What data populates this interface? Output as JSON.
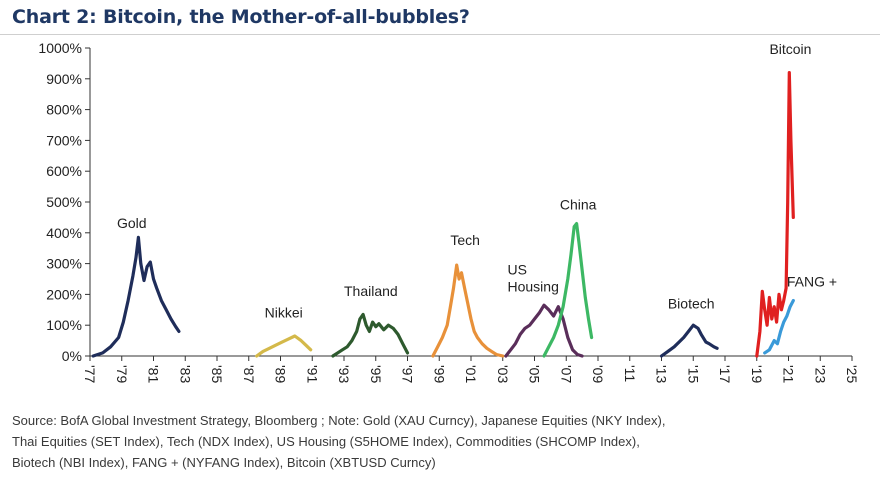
{
  "title": "Chart 2: Bitcoin, the Mother-of-all-bubbles?",
  "source_lines": [
    "Source: BofA Global Investment Strategy, Bloomberg ; Note: Gold (XAU Curncy), Japanese Equities (NKY Index),",
    "Thai Equities (SET Index), Tech (NDX Index), US Housing (S5HOME Index), Commodities (SHCOMP Index),",
    "Biotech (NBI Index), FANG + (NYFANG Index), Bitcoin (XBTUSD Curncy)"
  ],
  "chart_data": {
    "type": "line",
    "title": "Chart 2: Bitcoin, the Mother-of-all-bubbles?",
    "xlabel": "",
    "ylabel": "",
    "xlim": [
      1977,
      2025
    ],
    "ylim": [
      0,
      1000
    ],
    "grid": false,
    "y_ticks": [
      {
        "value": 0,
        "label": "0%"
      },
      {
        "value": 100,
        "label": "100%"
      },
      {
        "value": 200,
        "label": "200%"
      },
      {
        "value": 300,
        "label": "300%"
      },
      {
        "value": 400,
        "label": "400%"
      },
      {
        "value": 500,
        "label": "500%"
      },
      {
        "value": 600,
        "label": "600%"
      },
      {
        "value": 700,
        "label": "700%"
      },
      {
        "value": 800,
        "label": "800%"
      },
      {
        "value": 900,
        "label": "900%"
      },
      {
        "value": 1000,
        "label": "1000%"
      }
    ],
    "x_ticks": [
      {
        "value": 1977,
        "label": "'77"
      },
      {
        "value": 1979,
        "label": "'79"
      },
      {
        "value": 1981,
        "label": "'81"
      },
      {
        "value": 1983,
        "label": "'83"
      },
      {
        "value": 1985,
        "label": "'85"
      },
      {
        "value": 1987,
        "label": "'87"
      },
      {
        "value": 1989,
        "label": "'89"
      },
      {
        "value": 1991,
        "label": "'91"
      },
      {
        "value": 1993,
        "label": "'93"
      },
      {
        "value": 1995,
        "label": "'95"
      },
      {
        "value": 1997,
        "label": "'97"
      },
      {
        "value": 1999,
        "label": "'99"
      },
      {
        "value": 2001,
        "label": "'01"
      },
      {
        "value": 2003,
        "label": "'03"
      },
      {
        "value": 2005,
        "label": "'05"
      },
      {
        "value": 2007,
        "label": "'07"
      },
      {
        "value": 2009,
        "label": "'09"
      },
      {
        "value": 2011,
        "label": "'11"
      },
      {
        "value": 2013,
        "label": "'13"
      },
      {
        "value": 2015,
        "label": "'15"
      },
      {
        "value": 2017,
        "label": "'17"
      },
      {
        "value": 2019,
        "label": "'19"
      },
      {
        "value": 2021,
        "label": "'21"
      },
      {
        "value": 2023,
        "label": "'23"
      },
      {
        "value": 2025,
        "label": "'25"
      }
    ],
    "series": [
      {
        "name": "Gold",
        "color": "#1f2d5a",
        "label": {
          "text": "Gold",
          "x": 1978.7,
          "y": 415
        },
        "x": [
          1977.2,
          1977.8,
          1978.3,
          1978.8,
          1979.1,
          1979.4,
          1979.7,
          1979.9,
          1980.05,
          1980.2,
          1980.4,
          1980.6,
          1980.8,
          1981.0,
          1981.2,
          1981.5,
          1981.8,
          1982.1,
          1982.4,
          1982.6
        ],
        "y": [
          0,
          10,
          30,
          60,
          110,
          180,
          260,
          320,
          385,
          300,
          245,
          290,
          305,
          250,
          220,
          180,
          150,
          120,
          95,
          80
        ]
      },
      {
        "name": "Nikkei",
        "color": "#d4b94a",
        "label": {
          "text": "Nikkei",
          "x": 1988.0,
          "y": 125
        },
        "x": [
          1987.5,
          1987.9,
          1988.3,
          1988.7,
          1989.1,
          1989.5,
          1989.9,
          1990.3,
          1990.6,
          1990.9
        ],
        "y": [
          0,
          15,
          25,
          35,
          45,
          55,
          65,
          50,
          35,
          20
        ]
      },
      {
        "name": "Thailand",
        "color": "#2e5a2e",
        "label": {
          "text": "Thailand",
          "x": 1993.0,
          "y": 195
        },
        "x": [
          1992.3,
          1992.6,
          1992.9,
          1993.2,
          1993.5,
          1993.8,
          1994.0,
          1994.2,
          1994.4,
          1994.6,
          1994.8,
          1995.0,
          1995.2,
          1995.5,
          1995.8,
          1996.1,
          1996.4,
          1996.7,
          1997.0
        ],
        "y": [
          0,
          10,
          20,
          30,
          50,
          80,
          120,
          135,
          100,
          80,
          110,
          95,
          105,
          85,
          100,
          90,
          70,
          40,
          10
        ]
      },
      {
        "name": "Tech",
        "color": "#e8913a",
        "label": {
          "text": "Tech",
          "x": 1999.7,
          "y": 360
        },
        "x": [
          1998.6,
          1998.9,
          1999.2,
          1999.5,
          1999.7,
          1999.9,
          2000.1,
          2000.25,
          2000.4,
          2000.6,
          2000.8,
          2001.0,
          2001.2,
          2001.4,
          2001.7,
          2002.0,
          2002.3,
          2002.6,
          2003.0
        ],
        "y": [
          0,
          30,
          60,
          100,
          160,
          220,
          295,
          250,
          270,
          220,
          170,
          120,
          80,
          60,
          40,
          25,
          15,
          5,
          0
        ]
      },
      {
        "name": "US Housing",
        "color": "#5a2e5a",
        "label": {
          "text": "US\nHousing",
          "x": 2003.3,
          "y": 265
        },
        "x": [
          2003.2,
          2003.5,
          2003.8,
          2004.1,
          2004.4,
          2004.7,
          2005.0,
          2005.3,
          2005.6,
          2005.9,
          2006.2,
          2006.5,
          2006.8,
          2007.1,
          2007.4,
          2007.7,
          2008.0
        ],
        "y": [
          0,
          20,
          40,
          70,
          90,
          100,
          120,
          140,
          165,
          150,
          130,
          160,
          120,
          60,
          20,
          5,
          0
        ]
      },
      {
        "name": "China",
        "color": "#3db864",
        "label": {
          "text": "China",
          "x": 2006.6,
          "y": 475
        },
        "x": [
          2005.6,
          2005.9,
          2006.2,
          2006.5,
          2006.8,
          2007.1,
          2007.3,
          2007.5,
          2007.65,
          2007.8,
          2008.0,
          2008.2,
          2008.4,
          2008.6
        ],
        "y": [
          0,
          30,
          60,
          100,
          160,
          250,
          330,
          420,
          430,
          370,
          280,
          190,
          120,
          60
        ]
      },
      {
        "name": "Biotech",
        "color": "#1f2d5a",
        "label": {
          "text": "Biotech",
          "x": 2013.4,
          "y": 155
        },
        "x": [
          2013.0,
          2013.4,
          2013.8,
          2014.1,
          2014.4,
          2014.7,
          2015.0,
          2015.3,
          2015.5,
          2015.8,
          2016.0,
          2016.3,
          2016.5
        ],
        "y": [
          0,
          15,
          30,
          45,
          60,
          80,
          100,
          90,
          70,
          45,
          40,
          30,
          25
        ]
      },
      {
        "name": "Bitcoin",
        "color": "#e02020",
        "label": {
          "text": "Bitcoin",
          "x": 2019.8,
          "y": 980
        },
        "x": [
          2019.0,
          2019.2,
          2019.35,
          2019.5,
          2019.65,
          2019.8,
          2019.95,
          2020.1,
          2020.25,
          2020.4,
          2020.55,
          2020.7,
          2020.85,
          2020.95,
          2021.05,
          2021.15,
          2021.3
        ],
        "y": [
          0,
          80,
          210,
          150,
          100,
          190,
          120,
          160,
          110,
          200,
          150,
          180,
          220,
          500,
          920,
          700,
          450
        ]
      },
      {
        "name": "FANG +",
        "color": "#3a9ad9",
        "label": {
          "text": "FANG +",
          "x": 2020.9,
          "y": 225
        },
        "x": [
          2019.5,
          2019.8,
          2020.1,
          2020.3,
          2020.5,
          2020.7,
          2020.9,
          2021.1,
          2021.3
        ],
        "y": [
          10,
          20,
          50,
          40,
          80,
          110,
          130,
          160,
          180
        ]
      }
    ]
  }
}
